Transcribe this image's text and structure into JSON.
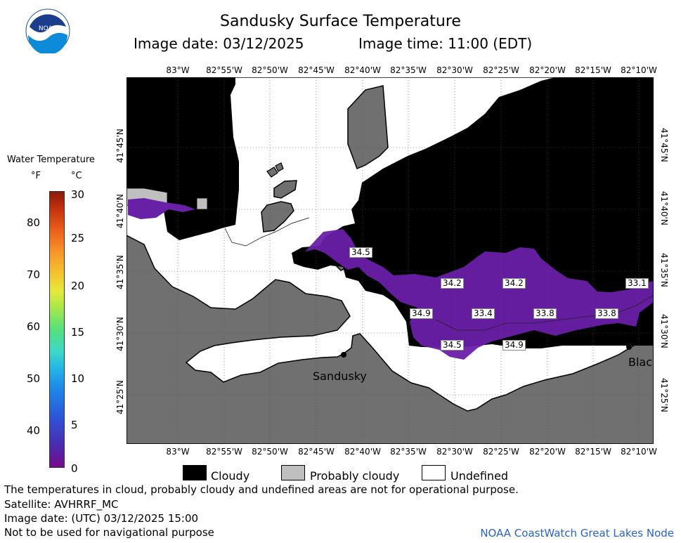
{
  "header": {
    "title": "Sandusky Surface Temperature",
    "image_date": "Image date: 03/12/2025",
    "image_time": "Image time: 11:00 (EDT)"
  },
  "logo": {
    "text": "NOAA",
    "icon": "noaa-logo-icon"
  },
  "legend": {
    "title": "Water Temperature",
    "unit_f": "°F",
    "unit_c": "°C",
    "f_ticks": [
      "80",
      "70",
      "60",
      "50",
      "40"
    ],
    "c_ticks": [
      "30",
      "25",
      "20",
      "15",
      "10",
      "5",
      "0"
    ]
  },
  "map": {
    "lon_labels": [
      "83°W",
      "82°55'W",
      "82°50'W",
      "82°45'W",
      "82°40'W",
      "82°35'W",
      "82°30'W",
      "82°25'W",
      "82°20'W",
      "82°15'W",
      "82°10'W"
    ],
    "lat_labels": [
      "41°45'N",
      "41°40'N",
      "41°35'N",
      "41°30'N",
      "41°25'N"
    ],
    "temperature_labels": [
      "34.5",
      "34.2",
      "34.2",
      "33.1",
      "34.9",
      "33.4",
      "33.8",
      "33.8",
      "34.5",
      "34.9"
    ],
    "cities": [
      "Sandusky",
      "Blac"
    ],
    "colors": {
      "cloud": "#000000",
      "land": "#707070",
      "undefined": "#ffffff",
      "cold_water": "#6a1fa8",
      "probably_cloudy": "#bfbfbf"
    }
  },
  "key": {
    "cloudy": "Cloudy",
    "probably_cloudy": "Probably cloudy",
    "undefined": "Undefined"
  },
  "footer": {
    "note": "The temperatures in cloud, probably cloudy and undefined areas are not for operational purpose.",
    "satellite": "Satellite: AVHRRF_MC",
    "utc_date": "Image date: (UTC) 03/12/2025  15:00",
    "nav_warning": "Not to be used for navigational purpose",
    "node": "NOAA CoastWatch Great Lakes Node"
  }
}
